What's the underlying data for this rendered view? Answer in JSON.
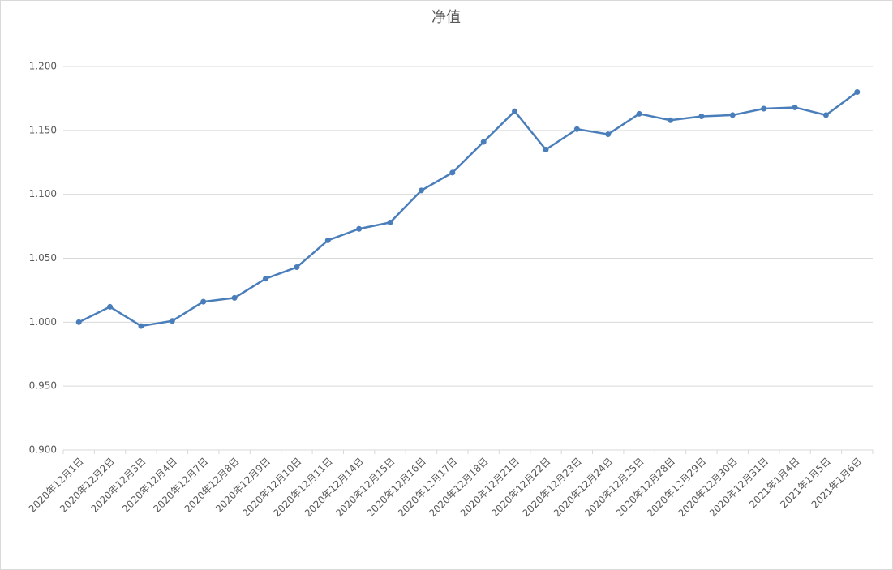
{
  "chart_data": {
    "type": "line",
    "title": "净值",
    "categories": [
      "2020年12月1日",
      "2020年12月2日",
      "2020年12月3日",
      "2020年12月4日",
      "2020年12月7日",
      "2020年12月8日",
      "2020年12月9日",
      "2020年12月10日",
      "2020年12月11日",
      "2020年12月14日",
      "2020年12月15日",
      "2020年12月16日",
      "2020年12月17日",
      "2020年12月18日",
      "2020年12月21日",
      "2020年12月22日",
      "2020年12月23日",
      "2020年12月24日",
      "2020年12月25日",
      "2020年12月28日",
      "2020年12月29日",
      "2020年12月30日",
      "2020年12月31日",
      "2021年1月4日",
      "2021年1月5日",
      "2021年1月6日"
    ],
    "series": [
      {
        "name": "净值",
        "color": "#4a7ebb",
        "values": [
          1.0,
          1.012,
          0.997,
          1.001,
          1.016,
          1.019,
          1.034,
          1.043,
          1.064,
          1.073,
          1.078,
          1.103,
          1.117,
          1.141,
          1.165,
          1.135,
          1.151,
          1.147,
          1.163,
          1.158,
          1.161,
          1.162,
          1.167,
          1.168,
          1.162,
          1.18
        ]
      }
    ],
    "ylim": [
      0.9,
      1.2
    ],
    "yticks": [
      {
        "value": 0.9,
        "label": "0.900"
      },
      {
        "value": 0.95,
        "label": "0.950"
      },
      {
        "value": 1.0,
        "label": "1.000"
      },
      {
        "value": 1.05,
        "label": "1.050"
      },
      {
        "value": 1.1,
        "label": "1.100"
      },
      {
        "value": 1.15,
        "label": "1.150"
      },
      {
        "value": 1.2,
        "label": "1.200"
      }
    ],
    "grid": true
  }
}
